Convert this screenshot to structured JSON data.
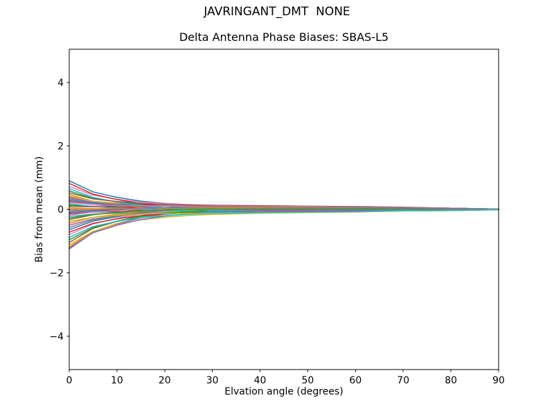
{
  "figure": {
    "suptitle": "JAVRINGANT_DMT  NONE",
    "axes_title": "Delta Antenna Phase Biases: SBAS-L5",
    "xlabel": "Elvation angle (degrees)",
    "ylabel": "Bias from mean (mm)",
    "background_color": "#ffffff",
    "text_color": "#000000",
    "spine_color": "#000000"
  },
  "chart_data": {
    "type": "line",
    "suptitle": "JAVRINGANT_DMT  NONE",
    "title": "Delta Antenna Phase Biases: SBAS-L5",
    "xlabel": "Elvation angle (degrees)",
    "ylabel": "Bias from mean (mm)",
    "xlim": [
      0,
      90
    ],
    "ylim": [
      -5.05,
      5.05
    ],
    "xticks": [
      0,
      10,
      20,
      30,
      40,
      50,
      60,
      70,
      80,
      90
    ],
    "yticks": [
      -4,
      -2,
      0,
      2,
      4
    ],
    "grid": false,
    "legend": false,
    "line_width": 1.5,
    "color_cycle": [
      "#1f77b4",
      "#ff7f0e",
      "#2ca02c",
      "#d62728",
      "#9467bd",
      "#8c564b",
      "#e377c2",
      "#7f7f7f",
      "#bcbd22",
      "#17becf"
    ],
    "x": [
      0,
      5,
      10,
      15,
      20,
      25,
      30,
      40,
      50,
      60,
      70,
      80,
      90
    ],
    "series": [
      {
        "values": [
          0.9,
          0.55,
          0.38,
          0.26,
          0.19,
          0.14,
          0.11,
          0.09,
          0.07,
          0.06,
          0.05,
          0.02,
          0.01
        ]
      },
      {
        "values": [
          0.42,
          0.26,
          0.19,
          0.14,
          0.11,
          0.09,
          0.08,
          0.06,
          0.05,
          0.04,
          0.03,
          0.02,
          0.01
        ]
      },
      {
        "values": [
          0.14,
          0.09,
          0.07,
          0.05,
          0.05,
          0.04,
          0.04,
          0.03,
          0.03,
          0.03,
          0.02,
          0.01,
          0.0
        ]
      },
      {
        "values": [
          -0.14,
          -0.09,
          -0.07,
          -0.06,
          -0.05,
          -0.05,
          -0.05,
          -0.04,
          -0.04,
          -0.03,
          -0.02,
          -0.02,
          0.0
        ]
      },
      {
        "values": [
          -0.5,
          -0.3,
          -0.21,
          -0.14,
          -0.1,
          -0.07,
          -0.05,
          -0.04,
          -0.03,
          -0.02,
          -0.01,
          -0.01,
          0.0
        ]
      },
      {
        "values": [
          -1.04,
          -0.6,
          -0.38,
          -0.2,
          -0.09,
          -0.01,
          0.04,
          0.07,
          0.07,
          0.07,
          0.06,
          0.04,
          0.01
        ]
      },
      {
        "values": [
          0.72,
          0.45,
          0.32,
          0.23,
          0.19,
          0.15,
          0.13,
          0.11,
          0.1,
          0.08,
          0.06,
          0.04,
          0.01
        ]
      },
      {
        "values": [
          0.34,
          0.22,
          0.17,
          0.13,
          0.12,
          0.11,
          0.1,
          0.09,
          0.08,
          0.07,
          0.05,
          0.03,
          0.01
        ]
      },
      {
        "values": [
          0.06,
          0.02,
          -0.01,
          -0.04,
          -0.06,
          -0.08,
          -0.09,
          -0.09,
          -0.08,
          -0.07,
          -0.05,
          -0.04,
          -0.01
        ]
      },
      {
        "values": [
          -0.22,
          -0.15,
          -0.12,
          -0.1,
          -0.09,
          -0.09,
          -0.08,
          -0.08,
          -0.07,
          -0.06,
          -0.04,
          -0.03,
          -0.01
        ]
      },
      {
        "values": [
          -0.64,
          -0.37,
          -0.23,
          -0.12,
          -0.05,
          -0.01,
          0.02,
          0.04,
          0.04,
          0.04,
          0.04,
          0.02,
          0.01
        ]
      },
      {
        "values": [
          -1.18,
          -0.7,
          -0.45,
          -0.27,
          -0.15,
          -0.07,
          -0.02,
          0.02,
          0.02,
          0.03,
          0.03,
          0.02,
          0.01
        ]
      },
      {
        "values": [
          0.58,
          0.35,
          0.24,
          0.16,
          0.12,
          0.09,
          0.07,
          0.05,
          0.04,
          0.03,
          0.02,
          0.01,
          0.0
        ]
      },
      {
        "values": [
          0.26,
          0.15,
          0.09,
          0.04,
          0.01,
          -0.01,
          -0.02,
          -0.03,
          -0.03,
          -0.03,
          -0.02,
          -0.02,
          0.0
        ]
      },
      {
        "values": [
          -0.02,
          -0.02,
          -0.02,
          -0.02,
          -0.02,
          -0.02,
          -0.02,
          -0.02,
          -0.02,
          -0.02,
          -0.01,
          -0.01,
          0.0
        ]
      },
      {
        "values": [
          -0.32,
          -0.17,
          -0.09,
          -0.02,
          0.03,
          0.06,
          0.08,
          0.09,
          0.08,
          0.08,
          0.06,
          0.04,
          0.01
        ]
      },
      {
        "values": [
          -0.8,
          -0.46,
          -0.28,
          -0.15,
          -0.06,
          0.0,
          0.04,
          0.07,
          0.07,
          0.06,
          0.05,
          0.04,
          0.01
        ]
      },
      {
        "values": [
          -1.25,
          -0.73,
          -0.47,
          -0.26,
          -0.14,
          -0.05,
          0.01,
          0.04,
          0.05,
          0.05,
          0.05,
          0.03,
          0.01
        ]
      },
      {
        "values": [
          0.47,
          0.26,
          0.15,
          0.06,
          0.0,
          -0.03,
          -0.06,
          -0.08,
          -0.07,
          -0.07,
          -0.05,
          -0.04,
          -0.01
        ]
      },
      {
        "values": [
          0.18,
          0.09,
          0.04,
          0.0,
          -0.03,
          -0.05,
          -0.06,
          -0.06,
          -0.06,
          -0.05,
          -0.04,
          -0.03,
          -0.01
        ]
      },
      {
        "values": [
          -0.1,
          -0.05,
          -0.02,
          0.01,
          0.03,
          0.04,
          0.05,
          0.06,
          0.05,
          0.05,
          0.04,
          0.02,
          0.01
        ]
      },
      {
        "values": [
          -0.44,
          -0.25,
          -0.16,
          -0.08,
          -0.03,
          0.0,
          0.02,
          0.04,
          0.04,
          0.04,
          0.03,
          0.02,
          0.01
        ]
      },
      {
        "values": [
          -0.96,
          -0.57,
          -0.37,
          -0.22,
          -0.13,
          -0.07,
          -0.03,
          0.0,
          0.01,
          0.01,
          0.02,
          0.01,
          0.0
        ]
      },
      {
        "values": [
          0.82,
          0.48,
          0.31,
          0.18,
          0.1,
          0.05,
          0.01,
          -0.02,
          -0.02,
          -0.02,
          -0.02,
          -0.02,
          0.0
        ]
      },
      {
        "values": [
          0.38,
          0.22,
          0.14,
          0.08,
          0.05,
          0.02,
          0.0,
          -0.01,
          -0.01,
          -0.01,
          -0.01,
          -0.01,
          0.0
        ]
      },
      {
        "values": [
          0.1,
          0.08,
          0.08,
          0.09,
          0.1,
          0.1,
          0.11,
          0.1,
          0.09,
          0.08,
          0.06,
          0.04,
          0.01
        ]
      },
      {
        "values": [
          -0.18,
          -0.09,
          -0.04,
          0.01,
          0.04,
          0.06,
          0.08,
          0.08,
          0.08,
          0.07,
          0.05,
          0.04,
          0.01
        ]
      },
      {
        "values": [
          -0.57,
          -0.33,
          -0.2,
          -0.1,
          -0.03,
          0.02,
          0.05,
          0.06,
          0.06,
          0.06,
          0.05,
          0.03,
          0.01
        ]
      },
      {
        "values": [
          -1.12,
          -0.69,
          -0.48,
          -0.33,
          -0.25,
          -0.19,
          -0.16,
          -0.12,
          -0.1,
          -0.08,
          -0.05,
          -0.04,
          -0.01
        ]
      },
      {
        "values": [
          0.65,
          0.38,
          0.23,
          0.12,
          0.05,
          0.0,
          -0.03,
          -0.05,
          -0.05,
          -0.05,
          -0.04,
          -0.03,
          -0.01
        ]
      },
      {
        "values": [
          0.3,
          0.19,
          0.14,
          0.11,
          0.1,
          0.08,
          0.08,
          0.07,
          0.06,
          0.05,
          0.04,
          0.02,
          0.01
        ]
      },
      {
        "values": [
          0.02,
          0.02,
          0.03,
          0.04,
          0.04,
          0.05,
          0.05,
          0.05,
          0.05,
          0.04,
          0.03,
          0.02,
          0.01
        ]
      },
      {
        "values": [
          -0.27,
          -0.16,
          -0.1,
          -0.05,
          -0.02,
          0.0,
          0.01,
          0.02,
          0.02,
          0.02,
          0.02,
          0.01,
          0.0
        ]
      },
      {
        "values": [
          -0.72,
          -0.44,
          -0.3,
          -0.2,
          -0.15,
          -0.11,
          -0.08,
          -0.06,
          -0.05,
          -0.04,
          -0.02,
          -0.02,
          0.0
        ]
      },
      {
        "values": [
          -1.22,
          -0.74,
          -0.5,
          -0.32,
          -0.21,
          -0.14,
          -0.09,
          -0.06,
          -0.04,
          -0.03,
          -0.01,
          -0.01,
          0.0
        ]
      },
      {
        "values": [
          0.52,
          0.33,
          0.25,
          0.19,
          0.16,
          0.14,
          0.13,
          0.12,
          0.1,
          0.09,
          0.07,
          0.04,
          0.01
        ]
      },
      {
        "values": [
          0.22,
          0.15,
          0.12,
          0.11,
          0.11,
          0.1,
          0.1,
          0.1,
          0.09,
          0.07,
          0.06,
          0.04,
          0.01
        ]
      },
      {
        "values": [
          -0.06,
          -0.02,
          0.01,
          0.03,
          0.05,
          0.07,
          0.08,
          0.08,
          0.07,
          0.06,
          0.05,
          0.03,
          0.01
        ]
      },
      {
        "values": [
          -0.38,
          -0.25,
          -0.19,
          -0.15,
          -0.13,
          -0.12,
          -0.11,
          -0.1,
          -0.09,
          -0.08,
          -0.05,
          -0.04,
          -0.01
        ]
      },
      {
        "values": [
          -0.88,
          -0.54,
          -0.38,
          -0.26,
          -0.2,
          -0.15,
          -0.12,
          -0.1,
          -0.08,
          -0.07,
          -0.04,
          -0.03,
          -0.01
        ]
      }
    ]
  }
}
